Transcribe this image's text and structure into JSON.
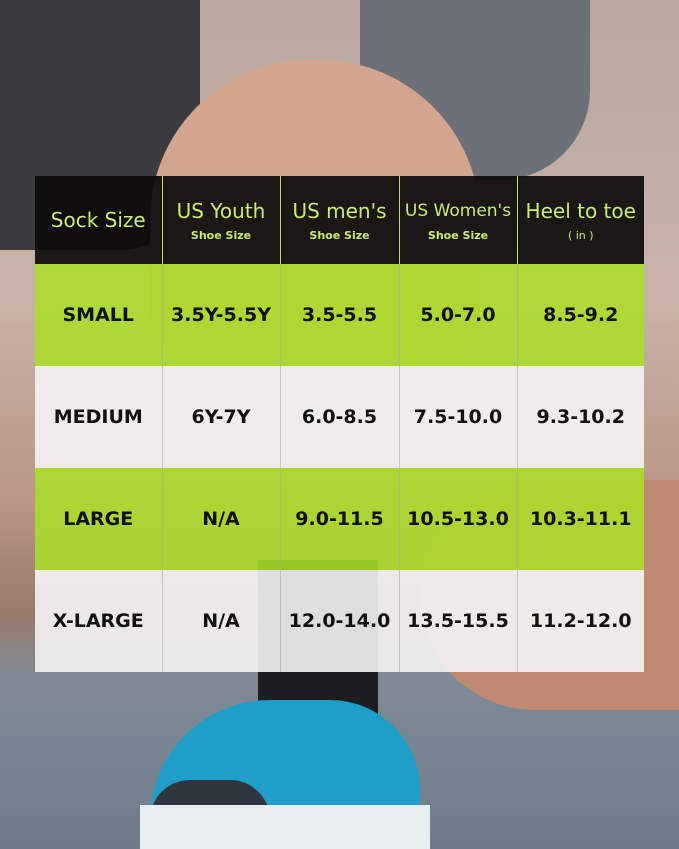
{
  "colors": {
    "header_bg": "#0c0a0a",
    "header_text": "#c8ee72",
    "green_row": "#aade28",
    "white_row": "#f4f4f4"
  },
  "headers": [
    {
      "main": "Sock Size",
      "sub": ""
    },
    {
      "main": "US Youth",
      "sub": "Shoe Size"
    },
    {
      "main": "US men's",
      "sub": "Shoe Size"
    },
    {
      "main": "US Women's",
      "sub": "Shoe Size"
    },
    {
      "main": "Heel to toe",
      "sub": "( in )"
    }
  ],
  "rows": [
    [
      "SMALL",
      "3.5Y-5.5Y",
      "3.5-5.5",
      "5.0-7.0",
      "8.5-9.2"
    ],
    [
      "MEDIUM",
      "6Y-7Y",
      "6.0-8.5",
      "7.5-10.0",
      "9.3-10.2"
    ],
    [
      "LARGE",
      "N/A",
      "9.0-11.5",
      "10.5-13.0",
      "10.3-11.1"
    ],
    [
      "X-LARGE",
      "N/A",
      "12.0-14.0",
      "13.5-15.5",
      "11.2-12.0"
    ]
  ]
}
